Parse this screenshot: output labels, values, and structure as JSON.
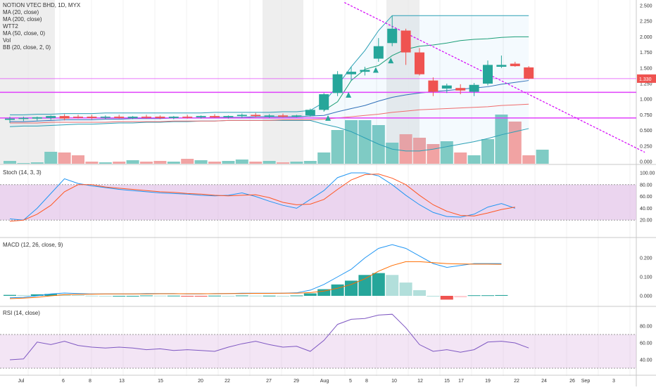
{
  "chart_data": {
    "type": "candlestick",
    "symbol_line": "NOTION VTEC BHD, 1D, MYX",
    "main_legend": [
      "MA (20, close)",
      "MA (200, close)",
      "WTT2",
      "MA (50, close, 0)",
      "Vol",
      "BB (20, close, 2, 0)"
    ],
    "price_axis": {
      "ticks": [
        "2.500",
        "2.250",
        "2.000",
        "1.750",
        "1.500",
        "1.250",
        "1.000",
        "0.750",
        "0.500",
        "0.250",
        "0.000"
      ],
      "range": [
        0,
        2.5
      ]
    },
    "last_price": "1.330",
    "x_labels": [
      "Jul",
      "6",
      "8",
      "13",
      "15",
      "20",
      "22",
      "27",
      "29",
      "Aug",
      "5",
      "8",
      "10",
      "12",
      "15",
      "17",
      "19",
      "22",
      "24",
      "26",
      "Sep",
      "3"
    ],
    "candles": [
      {
        "o": 0.67,
        "h": 0.72,
        "l": 0.62,
        "c": 0.69
      },
      {
        "o": 0.69,
        "h": 0.72,
        "l": 0.65,
        "c": 0.7
      },
      {
        "o": 0.69,
        "h": 0.72,
        "l": 0.66,
        "c": 0.71
      },
      {
        "o": 0.7,
        "h": 0.74,
        "l": 0.67,
        "c": 0.73
      },
      {
        "o": 0.73,
        "h": 0.76,
        "l": 0.66,
        "c": 0.69
      },
      {
        "o": 0.72,
        "h": 0.75,
        "l": 0.69,
        "c": 0.71
      },
      {
        "o": 0.72,
        "h": 0.75,
        "l": 0.68,
        "c": 0.7
      },
      {
        "o": 0.71,
        "h": 0.74,
        "l": 0.68,
        "c": 0.72
      },
      {
        "o": 0.72,
        "h": 0.75,
        "l": 0.69,
        "c": 0.7
      },
      {
        "o": 0.7,
        "h": 0.73,
        "l": 0.68,
        "c": 0.72
      },
      {
        "o": 0.72,
        "h": 0.75,
        "l": 0.69,
        "c": 0.71
      },
      {
        "o": 0.72,
        "h": 0.74,
        "l": 0.68,
        "c": 0.7
      },
      {
        "o": 0.7,
        "h": 0.73,
        "l": 0.68,
        "c": 0.72
      },
      {
        "o": 0.72,
        "h": 0.75,
        "l": 0.69,
        "c": 0.71
      },
      {
        "o": 0.71,
        "h": 0.74,
        "l": 0.69,
        "c": 0.73
      },
      {
        "o": 0.73,
        "h": 0.76,
        "l": 0.7,
        "c": 0.71
      },
      {
        "o": 0.71,
        "h": 0.74,
        "l": 0.69,
        "c": 0.73
      },
      {
        "o": 0.73,
        "h": 0.77,
        "l": 0.7,
        "c": 0.75
      },
      {
        "o": 0.75,
        "h": 0.78,
        "l": 0.71,
        "c": 0.73
      },
      {
        "o": 0.73,
        "h": 0.76,
        "l": 0.7,
        "c": 0.74
      },
      {
        "o": 0.74,
        "h": 0.77,
        "l": 0.71,
        "c": 0.72
      },
      {
        "o": 0.73,
        "h": 0.75,
        "l": 0.71,
        "c": 0.74
      },
      {
        "o": 0.74,
        "h": 0.85,
        "l": 0.72,
        "c": 0.83
      },
      {
        "o": 0.83,
        "h": 1.1,
        "l": 0.8,
        "c": 1.08
      },
      {
        "o": 1.1,
        "h": 1.45,
        "l": 1.05,
        "c": 1.4
      },
      {
        "o": 1.4,
        "h": 1.52,
        "l": 1.3,
        "c": 1.44
      },
      {
        "o": 1.44,
        "h": 1.52,
        "l": 1.38,
        "c": 1.47
      },
      {
        "o": 1.65,
        "h": 1.98,
        "l": 1.6,
        "c": 1.85
      },
      {
        "o": 1.9,
        "h": 2.34,
        "l": 1.85,
        "c": 2.13
      },
      {
        "o": 2.1,
        "h": 2.13,
        "l": 1.55,
        "c": 1.75
      },
      {
        "o": 1.75,
        "h": 1.82,
        "l": 1.38,
        "c": 1.4
      },
      {
        "o": 1.3,
        "h": 1.35,
        "l": 1.05,
        "c": 1.12
      },
      {
        "o": 1.17,
        "h": 1.25,
        "l": 1.1,
        "c": 1.22
      },
      {
        "o": 1.18,
        "h": 1.24,
        "l": 1.08,
        "c": 1.14
      },
      {
        "o": 1.12,
        "h": 1.26,
        "l": 1.05,
        "c": 1.23
      },
      {
        "o": 1.25,
        "h": 1.62,
        "l": 1.22,
        "c": 1.55
      },
      {
        "o": 1.52,
        "h": 1.7,
        "l": 1.5,
        "c": 1.55
      },
      {
        "o": 1.57,
        "h": 1.6,
        "l": 1.52,
        "c": 1.53
      },
      {
        "o": 1.51,
        "h": 1.53,
        "l": 1.32,
        "c": 1.33
      }
    ],
    "volume": [
      0.04,
      0.01,
      0.02,
      0.17,
      0.16,
      0.12,
      0.03,
      0.02,
      0.03,
      0.05,
      0.03,
      0.04,
      0.03,
      0.07,
      0.05,
      0.03,
      0.04,
      0.06,
      0.03,
      0.04,
      0.02,
      0.03,
      0.04,
      0.16,
      0.48,
      0.62,
      0.62,
      0.55,
      0.3,
      0.42,
      0.37,
      0.28,
      0.32,
      0.16,
      0.12,
      0.35,
      0.7,
      0.6,
      0.12,
      0.2
    ],
    "ma20": [
      0.64,
      0.64,
      0.65,
      0.66,
      0.67,
      0.67,
      0.67,
      0.68,
      0.68,
      0.69,
      0.69,
      0.69,
      0.7,
      0.7,
      0.7,
      0.71,
      0.71,
      0.71,
      0.72,
      0.72,
      0.72,
      0.72,
      0.73,
      0.74,
      0.8,
      0.85,
      0.9,
      0.97,
      1.03,
      1.07,
      1.1,
      1.12,
      1.14,
      1.16,
      1.18,
      1.2,
      1.24,
      1.27,
      1.3
    ],
    "ma50": [
      0.62,
      0.62,
      0.62,
      0.63,
      0.63,
      0.63,
      0.63,
      0.63,
      0.64,
      0.64,
      0.64,
      0.64,
      0.65,
      0.65,
      0.65,
      0.65,
      0.66,
      0.66,
      0.66,
      0.66,
      0.67,
      0.67,
      0.67,
      0.68,
      0.7,
      0.72,
      0.74,
      0.76,
      0.79,
      0.81,
      0.83,
      0.84,
      0.85,
      0.86,
      0.87,
      0.88,
      0.9,
      0.91,
      0.92
    ],
    "bb_upper": [
      0.75,
      0.75,
      0.76,
      0.76,
      0.77,
      0.77,
      0.77,
      0.78,
      0.78,
      0.78,
      0.78,
      0.78,
      0.78,
      0.78,
      0.78,
      0.79,
      0.79,
      0.79,
      0.79,
      0.79,
      0.8,
      0.8,
      0.82,
      0.95,
      1.22,
      1.52,
      1.78,
      2.1,
      2.34,
      2.34,
      2.34,
      2.34,
      2.34,
      2.34,
      2.34,
      2.34,
      2.34,
      2.34,
      2.34
    ],
    "bb_lower": [
      0.56,
      0.57,
      0.57,
      0.58,
      0.59,
      0.6,
      0.6,
      0.61,
      0.62,
      0.62,
      0.63,
      0.63,
      0.64,
      0.64,
      0.65,
      0.65,
      0.66,
      0.66,
      0.66,
      0.66,
      0.66,
      0.66,
      0.66,
      0.6,
      0.55,
      0.48,
      0.38,
      0.28,
      0.2,
      0.17,
      0.17,
      0.2,
      0.24,
      0.28,
      0.32,
      0.37,
      0.43,
      0.48,
      0.53
    ],
    "wtt2": [
      null,
      null,
      null,
      null,
      null,
      null,
      null,
      null,
      null,
      null,
      null,
      null,
      null,
      null,
      null,
      null,
      null,
      null,
      null,
      null,
      null,
      null,
      null,
      0.82,
      0.96,
      1.3,
      1.48,
      1.54,
      1.7,
      1.8,
      1.85,
      1.87,
      1.9,
      1.94,
      1.96,
      1.97,
      1.99,
      2.0,
      2.0
    ],
    "hlines": [
      1.33,
      1.11,
      0.7
    ],
    "trendline": [
      [
        24.5,
        2.55
      ],
      [
        46.5,
        0.15
      ]
    ],
    "stoch": {
      "label": "Stoch (14, 3, 3)",
      "axis_ticks": [
        "100.00",
        "80.00",
        "60.00",
        "40.00",
        "20.00"
      ],
      "k": [
        22,
        20,
        40,
        65,
        90,
        82,
        78,
        75,
        72,
        70,
        68,
        66,
        65,
        64,
        62,
        61,
        62,
        66,
        60,
        52,
        45,
        40,
        55,
        70,
        92,
        100,
        100,
        95,
        80,
        62,
        46,
        33,
        26,
        25,
        30,
        42,
        48,
        40
      ],
      "d": [
        18,
        20,
        30,
        45,
        68,
        80,
        80,
        76,
        74,
        72,
        70,
        68,
        67,
        65,
        64,
        62,
        61,
        62,
        63,
        58,
        50,
        46,
        47,
        55,
        72,
        88,
        97,
        98,
        91,
        80,
        62,
        46,
        35,
        28,
        27,
        32,
        38,
        42
      ]
    },
    "macd": {
      "label": "MACD (12, 26, close, 9)",
      "axis_ticks": [
        "0.200",
        "0.100",
        "0.000"
      ],
      "macd": [
        -0.01,
        -0.008,
        0.0,
        0.01,
        0.015,
        0.012,
        0.01,
        0.01,
        0.01,
        0.01,
        0.012,
        0.012,
        0.012,
        0.01,
        0.01,
        0.012,
        0.012,
        0.014,
        0.014,
        0.014,
        0.014,
        0.016,
        0.03,
        0.06,
        0.1,
        0.14,
        0.2,
        0.25,
        0.27,
        0.25,
        0.21,
        0.17,
        0.15,
        0.16,
        0.17,
        0.17,
        0.17
      ],
      "signal": [
        -0.015,
        -0.012,
        -0.008,
        0.0,
        0.006,
        0.008,
        0.009,
        0.01,
        0.01,
        0.01,
        0.01,
        0.011,
        0.011,
        0.011,
        0.011,
        0.011,
        0.012,
        0.012,
        0.013,
        0.013,
        0.014,
        0.014,
        0.017,
        0.025,
        0.04,
        0.06,
        0.09,
        0.13,
        0.16,
        0.18,
        0.18,
        0.175,
        0.17,
        0.168,
        0.167,
        0.167,
        0.166
      ],
      "hist": [
        0.005,
        0.004,
        0.008,
        0.01,
        0.009,
        0.004,
        0.001,
        0.0,
        0.0,
        0.0,
        0.002,
        0.001,
        0.001,
        -0.001,
        -0.001,
        0.001,
        0.0,
        0.002,
        0.001,
        0.001,
        0.0,
        0.002,
        0.013,
        0.035,
        0.06,
        0.08,
        0.11,
        0.12,
        0.11,
        0.07,
        0.03,
        0.0,
        -0.02,
        -0.008,
        0.003,
        0.003,
        0.004
      ]
    },
    "rsi": {
      "label": "RSI (14, close)",
      "axis_ticks": [
        "80.00",
        "60.00",
        "40.00"
      ],
      "values": [
        40,
        41,
        61,
        58,
        62,
        57,
        55,
        54,
        55,
        54,
        52,
        53,
        51,
        52,
        51,
        50,
        55,
        59,
        62,
        58,
        55,
        56,
        50,
        63,
        82,
        88,
        89,
        93,
        94,
        78,
        58,
        50,
        52,
        49,
        52,
        61,
        62,
        60,
        54
      ]
    }
  }
}
